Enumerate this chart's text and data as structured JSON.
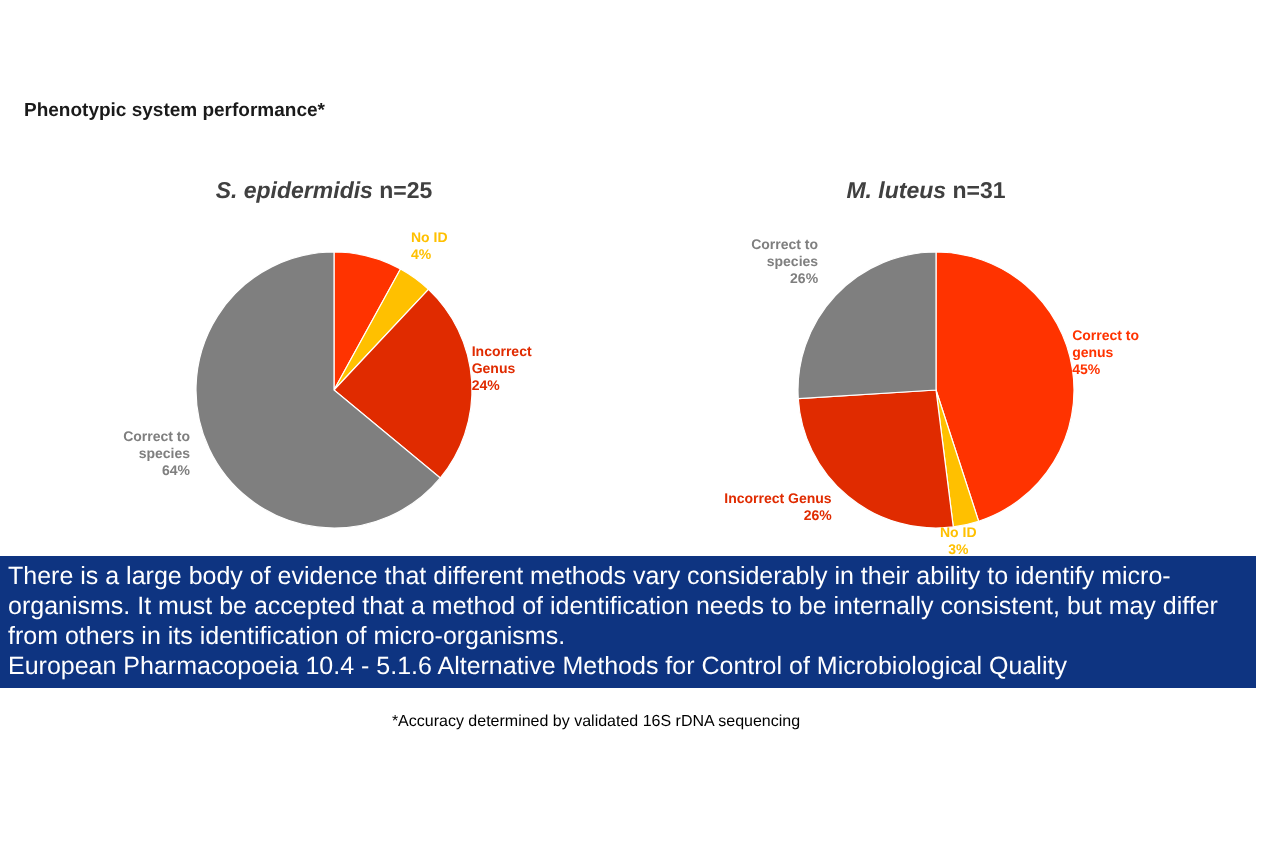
{
  "chart_data": [
    {
      "type": "other",
      "title": "Phenotypic system performance*"
    },
    {
      "type": "pie",
      "title": "S. epidermidis n=25",
      "categories": [
        null,
        "No ID",
        "Incorrect Genus",
        "Correct to species"
      ],
      "values": [
        8,
        4,
        24,
        64
      ],
      "colors": [
        "#ff3300",
        "#ffc000",
        "#e02b00",
        "#7f7f7f"
      ],
      "value_labels": [
        null,
        "4%",
        "24%",
        "64%"
      ]
    },
    {
      "type": "pie",
      "title": "M. luteus n=31",
      "categories": [
        "Correct to genus",
        "No ID",
        "Incorrect Genus",
        "Correct to species"
      ],
      "values": [
        45,
        3,
        26,
        26
      ],
      "colors": [
        "#ff3300",
        "#ffc000",
        "#e02b00",
        "#7f7f7f"
      ],
      "value_labels": [
        "45%",
        "3%",
        "26%",
        "26%"
      ]
    },
    {
      "type": "other",
      "annotations": [
        "There is a large body of evidence that different methods vary considerably in their ability to identify micro-organisms. It must be accepted that a method of identification needs to be internally consistent, but may differ from others in its identification of micro-organisms.",
        "European Pharmacopoeia 10.4 - 5.1.6 Alternative Methods for Control of Microbiological Quality",
        "*Accuracy determined by validated 16S rDNA sequencing"
      ]
    }
  ]
}
